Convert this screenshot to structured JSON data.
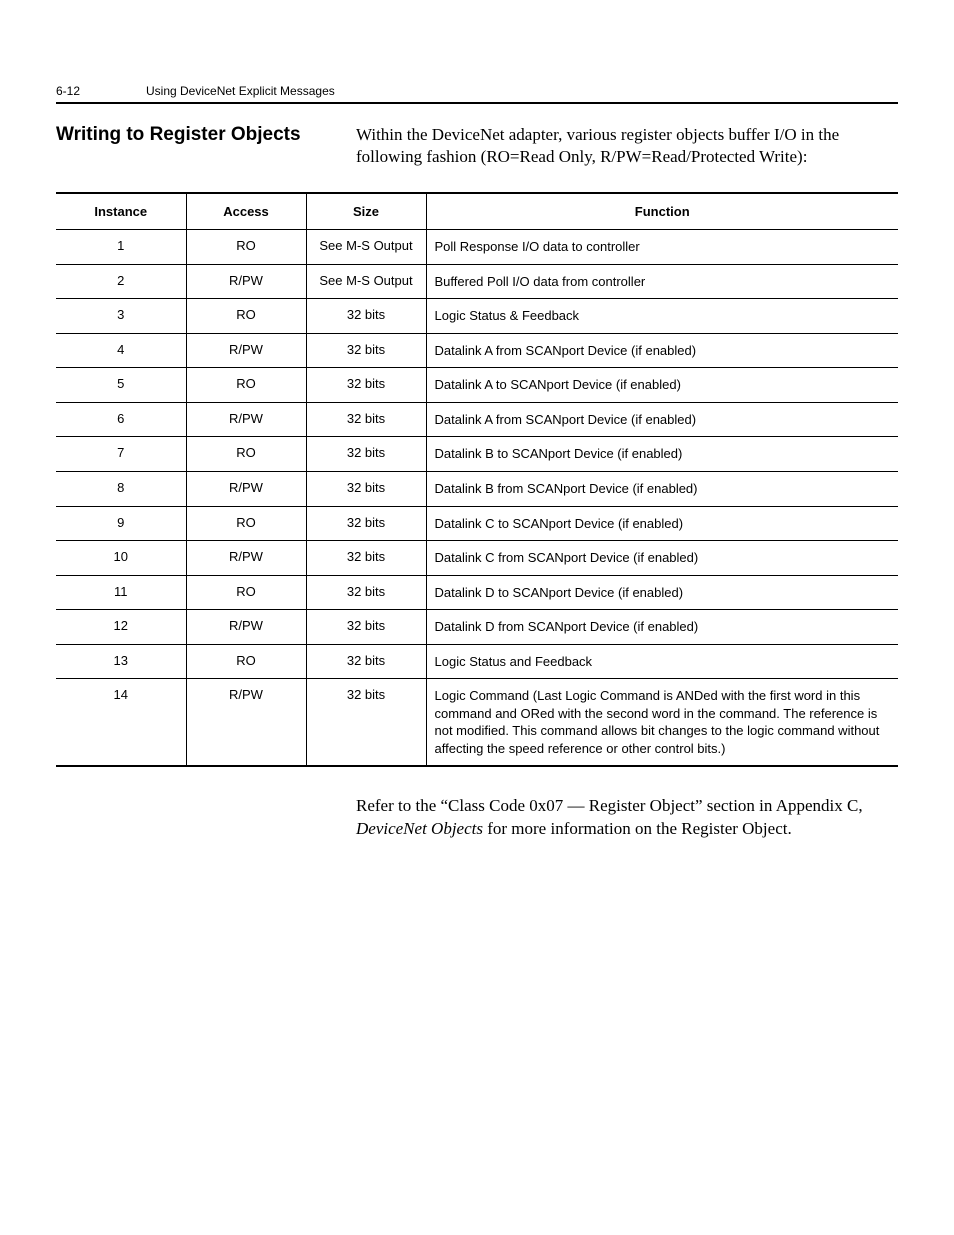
{
  "header": {
    "page_number": "6-12",
    "chapter_title": "Using DeviceNet Explicit Messages"
  },
  "section": {
    "heading": "Writing to Register Objects",
    "intro": "Within the DeviceNet adapter, various register objects buffer I/O in the following fashion (RO=Read Only, R/PW=Read/Protected Write):"
  },
  "table": {
    "columns": {
      "instance": "Instance",
      "access": "Access",
      "size": "Size",
      "function": "Function"
    },
    "rows": [
      {
        "instance": "1",
        "access": "RO",
        "size": "See M-S Output",
        "function": "Poll Response I/O data to controller"
      },
      {
        "instance": "2",
        "access": "R/PW",
        "size": "See M-S Output",
        "function": "Buffered Poll I/O data from controller"
      },
      {
        "instance": "3",
        "access": "RO",
        "size": "32 bits",
        "function": "Logic Status & Feedback"
      },
      {
        "instance": "4",
        "access": "R/PW",
        "size": "32 bits",
        "function": "Datalink A from SCANport Device (if enabled)"
      },
      {
        "instance": "5",
        "access": "RO",
        "size": "32 bits",
        "function": "Datalink A to SCANport Device (if enabled)"
      },
      {
        "instance": "6",
        "access": "R/PW",
        "size": "32 bits",
        "function": "Datalink A from SCANport Device (if enabled)"
      },
      {
        "instance": "7",
        "access": "RO",
        "size": "32 bits",
        "function": "Datalink B to SCANport Device (if enabled)"
      },
      {
        "instance": "8",
        "access": "R/PW",
        "size": "32 bits",
        "function": "Datalink B from SCANport Device (if enabled)"
      },
      {
        "instance": "9",
        "access": "RO",
        "size": "32 bits",
        "function": "Datalink C to SCANport Device (if enabled)"
      },
      {
        "instance": "10",
        "access": "R/PW",
        "size": "32 bits",
        "function": "Datalink C from SCANport Device (if enabled)"
      },
      {
        "instance": "11",
        "access": "RO",
        "size": "32 bits",
        "function": "Datalink D to SCANport Device (if enabled)"
      },
      {
        "instance": "12",
        "access": "R/PW",
        "size": "32 bits",
        "function": "Datalink D from SCANport Device (if enabled)"
      },
      {
        "instance": "13",
        "access": "RO",
        "size": "32 bits",
        "function": "Logic Status and Feedback"
      },
      {
        "instance": "14",
        "access": "R/PW",
        "size": "32 bits",
        "function": "Logic Command (Last Logic Command is ANDed with the first word in this command and ORed with the second word in the command. The reference is not modified. This command allows bit changes to the logic command without affecting the speed reference or other control bits.)"
      }
    ]
  },
  "footer_paragraph": {
    "part1": "Refer to the “Class Code 0x07 — Register Object” section in Appendix C, ",
    "italic": "DeviceNet Objects",
    "part2": " for more information on the Register Object."
  }
}
